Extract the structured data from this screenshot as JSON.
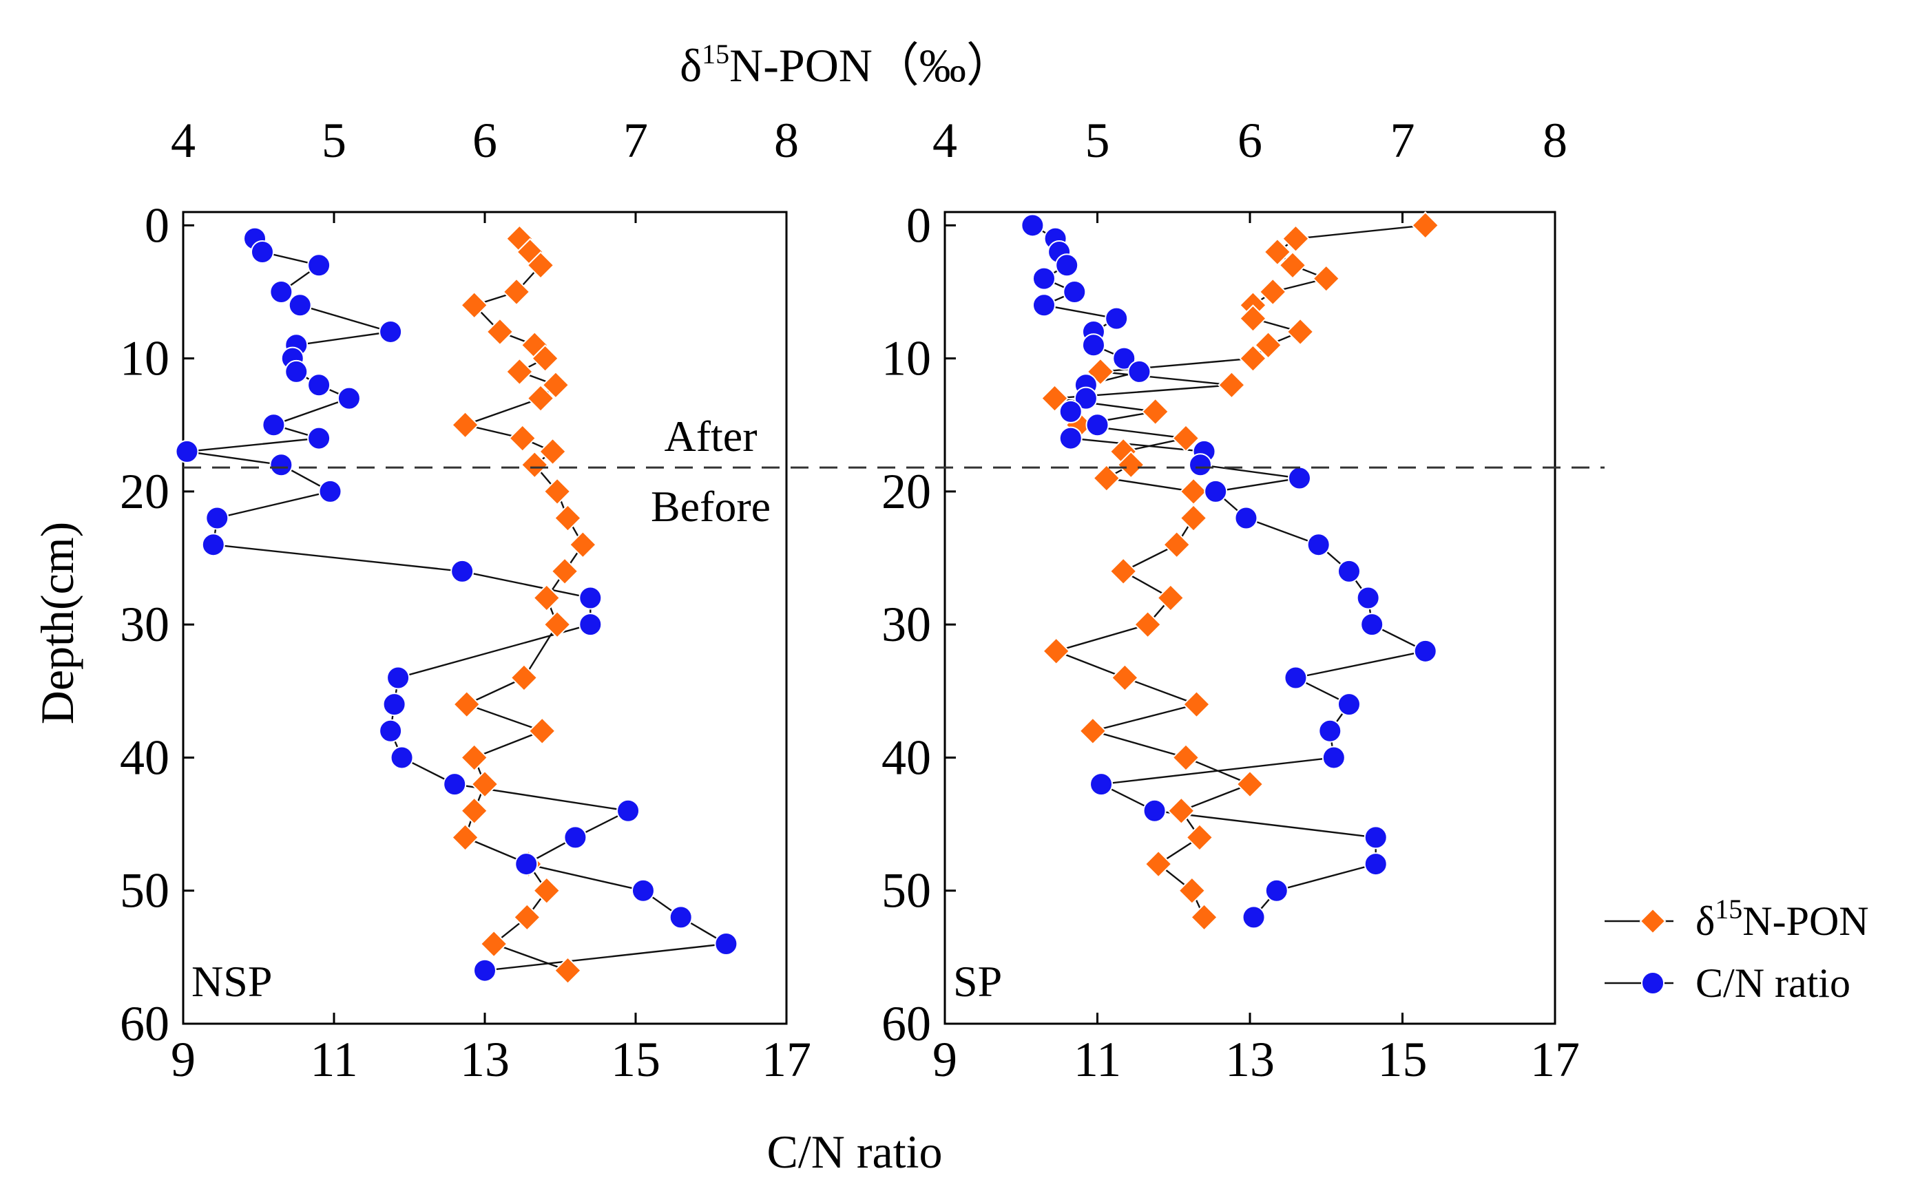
{
  "figure": {
    "top_axis_title": {
      "prefix": "δ",
      "sup": "15",
      "rest": "N-PON（‰）"
    },
    "bottom_axis_title": "C/N ratio",
    "y_axis_title": "Depth(cm)",
    "annotation_after": "After",
    "annotation_before": "Before",
    "divider_depth": 18.2
  },
  "legend": {
    "items": [
      {
        "prefix": "δ",
        "sup": "15",
        "rest": "N-PON",
        "color": "#FF6A0D",
        "marker": "diamond"
      },
      {
        "prefix": "",
        "sup": "",
        "rest": "C/N ratio",
        "color": "#1414F0",
        "marker": "circle"
      }
    ]
  },
  "chart_data": [
    {
      "type": "scatter",
      "panel_label": "NSP",
      "y_axis": {
        "label": "Depth(cm)",
        "range": [
          -1,
          60
        ],
        "ticks": [
          0,
          10,
          20,
          30,
          40,
          50,
          60
        ],
        "inverted": true
      },
      "top_x_axis": {
        "label": "δ15N-PON（‰）",
        "range": [
          4,
          8
        ],
        "ticks": [
          4,
          5,
          6,
          7,
          8
        ]
      },
      "bottom_x_axis": {
        "label": "C/N ratio",
        "range": [
          9,
          17
        ],
        "ticks": [
          9,
          11,
          13,
          15,
          17
        ]
      },
      "series": [
        {
          "name": "δ15N-PON",
          "axis": "top",
          "color": "#FF6A0D",
          "marker": "diamond",
          "depth": [
            1,
            2,
            3,
            5,
            6,
            8,
            9,
            10,
            11,
            12,
            13,
            15,
            16,
            17,
            18,
            20,
            22,
            24,
            26,
            28,
            30,
            34,
            36,
            38,
            40,
            42,
            44,
            46,
            48,
            50,
            52,
            54,
            56
          ],
          "values": [
            6.23,
            6.3,
            6.37,
            6.21,
            5.93,
            6.1,
            6.33,
            6.4,
            6.23,
            6.47,
            6.37,
            5.87,
            6.25,
            6.45,
            6.33,
            6.48,
            6.55,
            6.65,
            6.53,
            6.41,
            6.48,
            6.26,
            5.88,
            6.38,
            5.93,
            6.0,
            5.93,
            5.87,
            6.29,
            6.41,
            6.28,
            6.06,
            6.55
          ]
        },
        {
          "name": "C/N ratio",
          "axis": "bottom",
          "color": "#1414F0",
          "marker": "circle",
          "depth": [
            1,
            2,
            3,
            5,
            6,
            8,
            9,
            10,
            11,
            12,
            13,
            15,
            16,
            17,
            18,
            20,
            22,
            24,
            26,
            28,
            30,
            34,
            36,
            38,
            40,
            42,
            44,
            46,
            48,
            50,
            52,
            54,
            56
          ],
          "values": [
            9.95,
            10.05,
            10.8,
            10.3,
            10.55,
            11.75,
            10.5,
            10.45,
            10.5,
            10.8,
            11.2,
            10.2,
            10.8,
            9.05,
            10.3,
            10.95,
            9.45,
            9.4,
            12.7,
            14.4,
            14.4,
            11.85,
            11.8,
            11.75,
            11.9,
            12.6,
            14.9,
            14.2,
            13.55,
            15.1,
            15.6,
            16.2,
            13.0
          ]
        }
      ]
    },
    {
      "type": "scatter",
      "panel_label": "SP",
      "y_axis": {
        "label": "Depth(cm)",
        "range": [
          -1,
          60
        ],
        "ticks": [
          0,
          10,
          20,
          30,
          40,
          50,
          60
        ],
        "inverted": true
      },
      "top_x_axis": {
        "label": "δ15N-PON（‰）",
        "range": [
          4,
          8
        ],
        "ticks": [
          4,
          5,
          6,
          7,
          8
        ]
      },
      "bottom_x_axis": {
        "label": "C/N ratio",
        "range": [
          9,
          17
        ],
        "ticks": [
          9,
          11,
          13,
          15,
          17
        ]
      },
      "series": [
        {
          "name": "δ15N-PON",
          "axis": "top",
          "color": "#FF6A0D",
          "marker": "diamond",
          "depth": [
            0,
            1,
            2,
            3,
            4,
            5,
            6,
            7,
            8,
            9,
            10,
            11,
            12,
            13,
            14,
            15,
            16,
            17,
            18,
            19,
            20,
            22,
            24,
            26,
            28,
            30,
            32,
            34,
            36,
            38,
            40,
            42,
            44,
            46,
            48,
            50,
            52
          ],
          "values": [
            7.15,
            6.3,
            6.18,
            6.28,
            6.5,
            6.15,
            6.02,
            6.02,
            6.33,
            6.12,
            6.02,
            5.02,
            5.88,
            4.72,
            5.38,
            4.88,
            5.58,
            5.17,
            5.22,
            5.06,
            5.63,
            5.63,
            5.52,
            5.17,
            5.48,
            5.33,
            4.73,
            5.18,
            5.65,
            4.97,
            5.58,
            6.0,
            5.55,
            5.67,
            5.4,
            5.62,
            5.7
          ]
        },
        {
          "name": "C/N ratio",
          "axis": "bottom",
          "color": "#1414F0",
          "marker": "circle",
          "depth": [
            0,
            1,
            2,
            3,
            4,
            5,
            6,
            7,
            8,
            9,
            10,
            11,
            12,
            13,
            14,
            15,
            16,
            17,
            18,
            19,
            20,
            22,
            24,
            26,
            28,
            30,
            32,
            34,
            36,
            38,
            40,
            42,
            44,
            46,
            48,
            50,
            52
          ],
          "values": [
            10.15,
            10.45,
            10.5,
            10.6,
            10.3,
            10.7,
            10.3,
            11.25,
            10.95,
            10.95,
            11.35,
            11.55,
            10.85,
            10.85,
            10.65,
            11.0,
            10.65,
            12.4,
            12.35,
            13.65,
            12.55,
            12.95,
            13.9,
            14.3,
            14.55,
            14.6,
            15.3,
            13.6,
            14.3,
            14.05,
            14.1,
            11.05,
            11.75,
            14.65,
            14.65,
            13.35,
            13.05
          ]
        }
      ]
    }
  ]
}
